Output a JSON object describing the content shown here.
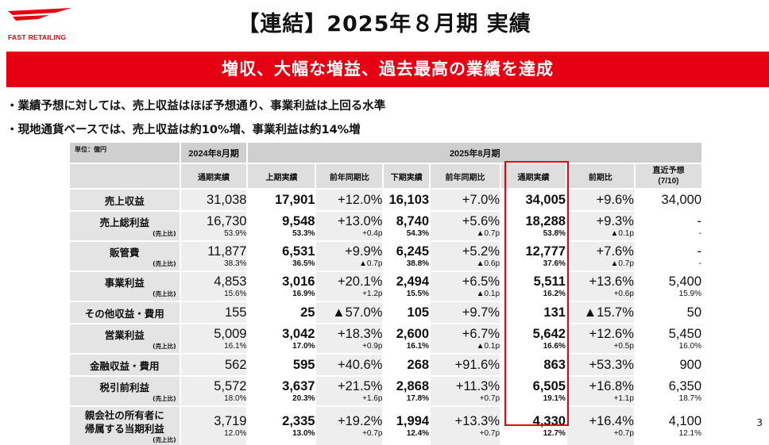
{
  "company": {
    "logo_text": "FAST RETAILING",
    "brand_color": "#e60012"
  },
  "title": "【連結】2025年８月期 実績",
  "banner": "増収、大幅な増益、過去最高の業績を達成",
  "bullets": [
    "・業績予想に対しては、売上収益はほぼ予想通り、事業利益は上回る水準",
    "・現地通貨ベースでは、売上収益は約10%増、事業利益は約14%増"
  ],
  "table": {
    "unit_label": "単位：億円",
    "group_headers": {
      "prev_year": "2024年8月期",
      "curr_year": "2025年8月期"
    },
    "columns": [
      "通期実績",
      "上期実績",
      "前年同期比",
      "下期実績",
      "前年同期比",
      "通期実績",
      "前期比",
      "直近予想",
      "(7/10)"
    ],
    "ratio_label": "(売上比)",
    "rows": [
      {
        "label": "売上収益",
        "main": [
          "31,038",
          "17,901",
          "+12.0%",
          "16,103",
          "+7.0%",
          "34,005",
          "+9.6%",
          "34,000"
        ]
      },
      {
        "label": "売上総利益",
        "main": [
          "16,730",
          "9,548",
          "+13.0%",
          "8,740",
          "+5.6%",
          "18,288",
          "+9.3%",
          "-"
        ],
        "ratio": [
          "53.9%",
          "53.3%",
          "+0.4p",
          "54.3%",
          "▲0.7p",
          "53.8%",
          "▲0.1p",
          "-"
        ]
      },
      {
        "label": "販管費",
        "main": [
          "11,877",
          "6,531",
          "+9.9%",
          "6,245",
          "+5.2%",
          "12,777",
          "+7.6%",
          "-"
        ],
        "ratio": [
          "38.3%",
          "36.5%",
          "▲0.7p",
          "38.8%",
          "▲0.6p",
          "37.6%",
          "▲0.7p",
          "-"
        ]
      },
      {
        "label": "事業利益",
        "main": [
          "4,853",
          "3,016",
          "+20.1%",
          "2,494",
          "+6.5%",
          "5,511",
          "+13.6%",
          "5,400"
        ],
        "ratio": [
          "15.6%",
          "16.9%",
          "+1.2p",
          "15.5%",
          "▲0.1p",
          "16.2%",
          "+0.6p",
          "15.9%"
        ]
      },
      {
        "label": "その他収益・費用",
        "main": [
          "155",
          "25",
          "▲57.0%",
          "105",
          "+9.7%",
          "131",
          "▲15.7%",
          "50"
        ]
      },
      {
        "label": "営業利益",
        "main": [
          "5,009",
          "3,042",
          "+18.3%",
          "2,600",
          "+6.7%",
          "5,642",
          "+12.6%",
          "5,450"
        ],
        "ratio": [
          "16.1%",
          "17.0%",
          "+0.9p",
          "16.1%",
          "▲0.1p",
          "16.6%",
          "+0.5p",
          "16.0%"
        ]
      },
      {
        "label": "金融収益・費用",
        "main": [
          "562",
          "595",
          "+40.6%",
          "268",
          "+91.6%",
          "863",
          "+53.3%",
          "900"
        ]
      },
      {
        "label": "税引前利益",
        "main": [
          "5,572",
          "3,637",
          "+21.5%",
          "2,868",
          "+11.3%",
          "6,505",
          "+16.8%",
          "6,350"
        ],
        "ratio": [
          "18.0%",
          "20.3%",
          "+1.6p",
          "17.8%",
          "+0.7p",
          "19.1%",
          "+1.1p",
          "18.7%"
        ]
      },
      {
        "label": "親会社の所有者に",
        "label2": "帰属する当期利益",
        "main": [
          "3,719",
          "2,335",
          "+19.2%",
          "1,994",
          "+13.3%",
          "4,330",
          "+16.4%",
          "4,100"
        ],
        "ratio": [
          "12.0%",
          "13.0%",
          "+0.7p",
          "12.4%",
          "+0.7p",
          "12.7%",
          "+0.7p",
          "12.1%"
        ]
      }
    ]
  },
  "page_number": "3"
}
